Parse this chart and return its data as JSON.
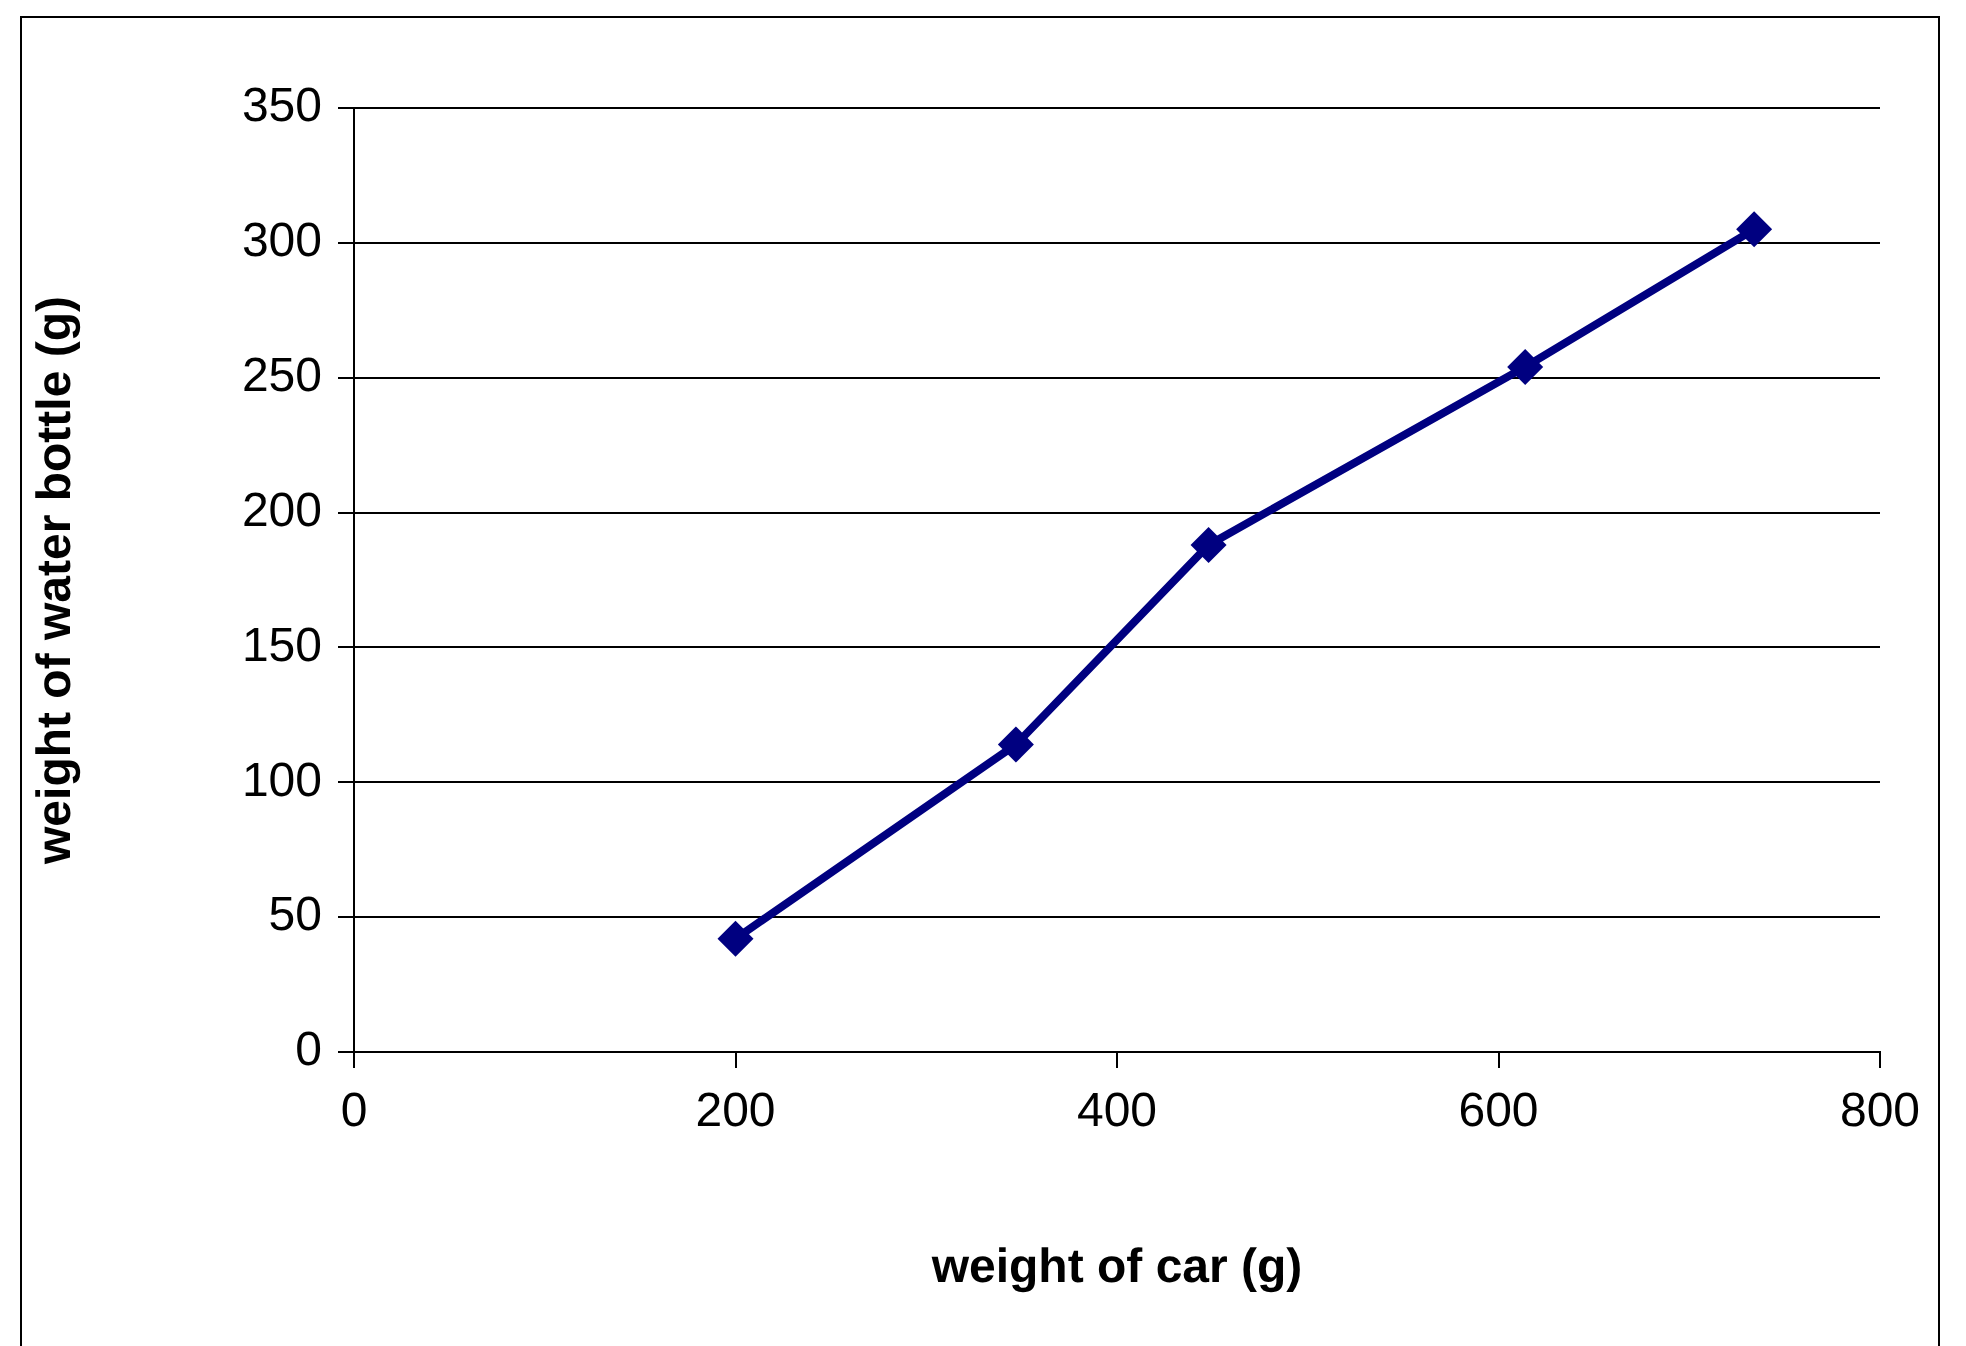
{
  "chart_data": {
    "type": "line",
    "xlabel": "weight of car (g)",
    "ylabel": "weight of water bottle (g)",
    "x": [
      200,
      347,
      448,
      614,
      734
    ],
    "series": [
      {
        "color": "#000080",
        "values": [
          42,
          114,
          188,
          254,
          305
        ]
      }
    ],
    "xlim": [
      0,
      800
    ],
    "xticks": [
      0,
      200,
      400,
      600,
      800
    ],
    "ylim": [
      0,
      350
    ],
    "yticks": [
      0,
      50,
      100,
      150,
      200,
      250,
      300,
      350
    ],
    "grid": "y",
    "legend": false,
    "marker": "diamond",
    "line_style": "solid"
  }
}
